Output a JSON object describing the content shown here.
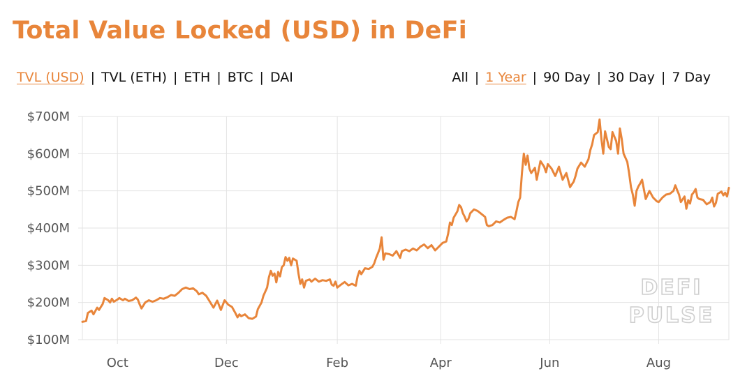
{
  "header": {
    "title": "Total Value Locked (USD) in DeFi"
  },
  "metric_tabs": [
    {
      "label": "TVL (USD)",
      "active": true
    },
    {
      "label": "TVL (ETH)",
      "active": false
    },
    {
      "label": "ETH",
      "active": false
    },
    {
      "label": "BTC",
      "active": false
    },
    {
      "label": "DAI",
      "active": false
    }
  ],
  "range_tabs": [
    {
      "label": "All",
      "active": false
    },
    {
      "label": "1 Year",
      "active": true
    },
    {
      "label": "90 Day",
      "active": false
    },
    {
      "label": "30 Day",
      "active": false
    },
    {
      "label": "7 Day",
      "active": false
    }
  ],
  "separator": "|",
  "watermark": {
    "line1": "DEFI",
    "line2": "PULSE"
  },
  "colors": {
    "accent": "#e8853a",
    "grid": "#e3e3e3",
    "tick": "#555555"
  },
  "chart_data": {
    "type": "line",
    "title": "Total Value Locked (USD) in DeFi",
    "xlabel": "",
    "ylabel": "",
    "ylim": [
      100,
      700
    ],
    "xlim": [
      0,
      350
    ],
    "yticks": [
      100,
      200,
      300,
      400,
      500,
      600,
      700
    ],
    "ytick_labels": [
      "$100M",
      "$200M",
      "$300M",
      "$400M",
      "$500M",
      "$600M",
      "$700M"
    ],
    "xticks": [
      {
        "label": "Oct",
        "x": 19
      },
      {
        "label": "Dec",
        "x": 78
      },
      {
        "label": "Feb",
        "x": 138
      },
      {
        "label": "Apr",
        "x": 194
      },
      {
        "label": "Jun",
        "x": 253
      },
      {
        "label": "Aug",
        "x": 312
      }
    ],
    "x_unit": "days since start of displayed range",
    "grid": true,
    "legend": "none",
    "series": [
      {
        "name": "TVL (USD)",
        "color": "#e8853a",
        "points": [
          [
            0,
            148
          ],
          [
            2,
            150
          ],
          [
            3,
            172
          ],
          [
            5,
            178
          ],
          [
            6,
            168
          ],
          [
            8,
            186
          ],
          [
            9,
            180
          ],
          [
            11,
            196
          ],
          [
            12,
            212
          ],
          [
            14,
            206
          ],
          [
            15,
            200
          ],
          [
            16,
            210
          ],
          [
            17,
            202
          ],
          [
            19,
            208
          ],
          [
            20,
            212
          ],
          [
            22,
            206
          ],
          [
            23,
            210
          ],
          [
            25,
            204
          ],
          [
            27,
            206
          ],
          [
            29,
            213
          ],
          [
            30,
            208
          ],
          [
            31,
            195
          ],
          [
            32,
            184
          ],
          [
            34,
            200
          ],
          [
            36,
            206
          ],
          [
            38,
            202
          ],
          [
            40,
            206
          ],
          [
            42,
            212
          ],
          [
            44,
            210
          ],
          [
            46,
            214
          ],
          [
            48,
            220
          ],
          [
            50,
            218
          ],
          [
            52,
            226
          ],
          [
            54,
            236
          ],
          [
            56,
            240
          ],
          [
            58,
            236
          ],
          [
            60,
            238
          ],
          [
            62,
            230
          ],
          [
            63,
            222
          ],
          [
            65,
            226
          ],
          [
            67,
            218
          ],
          [
            69,
            202
          ],
          [
            71,
            186
          ],
          [
            73,
            205
          ],
          [
            75,
            180
          ],
          [
            77,
            206
          ],
          [
            79,
            194
          ],
          [
            81,
            188
          ],
          [
            83,
            170
          ],
          [
            84,
            160
          ],
          [
            85,
            168
          ],
          [
            86,
            163
          ],
          [
            88,
            168
          ],
          [
            90,
            158
          ],
          [
            92,
            156
          ],
          [
            94,
            162
          ],
          [
            95,
            182
          ],
          [
            97,
            200
          ],
          [
            98,
            218
          ],
          [
            100,
            240
          ],
          [
            101,
            268
          ],
          [
            102,
            285
          ],
          [
            103,
            272
          ],
          [
            104,
            278
          ],
          [
            105,
            254
          ],
          [
            106,
            282
          ],
          [
            107,
            270
          ],
          [
            108,
            295
          ],
          [
            109,
            300
          ],
          [
            110,
            322
          ],
          [
            111,
            312
          ],
          [
            112,
            320
          ],
          [
            113,
            300
          ],
          [
            114,
            318
          ],
          [
            116,
            312
          ],
          [
            117,
            278
          ],
          [
            118,
            250
          ],
          [
            119,
            262
          ],
          [
            120,
            240
          ],
          [
            121,
            258
          ],
          [
            123,
            262
          ],
          [
            124,
            256
          ],
          [
            126,
            264
          ],
          [
            128,
            256
          ],
          [
            130,
            260
          ],
          [
            132,
            258
          ],
          [
            134,
            262
          ],
          [
            135,
            248
          ],
          [
            136,
            245
          ],
          [
            137,
            256
          ],
          [
            138,
            240
          ],
          [
            140,
            248
          ],
          [
            142,
            255
          ],
          [
            144,
            246
          ],
          [
            146,
            250
          ],
          [
            148,
            245
          ],
          [
            149,
            270
          ],
          [
            150,
            285
          ],
          [
            151,
            276
          ],
          [
            153,
            292
          ],
          [
            155,
            290
          ],
          [
            157,
            296
          ],
          [
            158,
            305
          ],
          [
            159,
            320
          ],
          [
            160,
            332
          ],
          [
            161,
            345
          ],
          [
            162,
            375
          ],
          [
            163,
            315
          ],
          [
            164,
            332
          ],
          [
            166,
            330
          ],
          [
            168,
            326
          ],
          [
            170,
            338
          ],
          [
            172,
            320
          ],
          [
            173,
            338
          ],
          [
            175,
            342
          ],
          [
            177,
            338
          ],
          [
            179,
            345
          ],
          [
            181,
            340
          ],
          [
            183,
            350
          ],
          [
            185,
            356
          ],
          [
            187,
            346
          ],
          [
            189,
            354
          ],
          [
            191,
            340
          ],
          [
            193,
            350
          ],
          [
            195,
            360
          ],
          [
            197,
            364
          ],
          [
            198,
            385
          ],
          [
            199,
            415
          ],
          [
            200,
            408
          ],
          [
            201,
            428
          ],
          [
            203,
            445
          ],
          [
            204,
            462
          ],
          [
            205,
            456
          ],
          [
            206,
            440
          ],
          [
            207,
            430
          ],
          [
            208,
            418
          ],
          [
            209,
            425
          ],
          [
            210,
            440
          ],
          [
            212,
            450
          ],
          [
            214,
            446
          ],
          [
            216,
            438
          ],
          [
            218,
            430
          ],
          [
            219,
            408
          ],
          [
            220,
            405
          ],
          [
            222,
            408
          ],
          [
            224,
            418
          ],
          [
            226,
            415
          ],
          [
            228,
            422
          ],
          [
            230,
            428
          ],
          [
            232,
            430
          ],
          [
            234,
            424
          ],
          [
            235,
            445
          ],
          [
            236,
            470
          ],
          [
            237,
            482
          ],
          [
            238,
            550
          ],
          [
            239,
            600
          ],
          [
            240,
            570
          ],
          [
            241,
            595
          ],
          [
            242,
            560
          ],
          [
            243,
            548
          ],
          [
            245,
            562
          ],
          [
            246,
            530
          ],
          [
            248,
            580
          ],
          [
            250,
            565
          ],
          [
            251,
            550
          ],
          [
            252,
            572
          ],
          [
            254,
            560
          ],
          [
            256,
            540
          ],
          [
            258,
            565
          ],
          [
            260,
            530
          ],
          [
            262,
            548
          ],
          [
            264,
            510
          ],
          [
            266,
            525
          ],
          [
            267,
            540
          ],
          [
            268,
            560
          ],
          [
            270,
            576
          ],
          [
            272,
            565
          ],
          [
            274,
            585
          ],
          [
            275,
            610
          ],
          [
            276,
            625
          ],
          [
            277,
            650
          ],
          [
            279,
            658
          ],
          [
            280,
            692
          ],
          [
            281,
            640
          ],
          [
            282,
            600
          ],
          [
            283,
            660
          ],
          [
            285,
            618
          ],
          [
            286,
            612
          ],
          [
            287,
            658
          ],
          [
            289,
            634
          ],
          [
            290,
            600
          ],
          [
            291,
            668
          ],
          [
            292,
            640
          ],
          [
            293,
            600
          ],
          [
            295,
            578
          ],
          [
            296,
            548
          ],
          [
            297,
            510
          ],
          [
            298,
            490
          ],
          [
            299,
            460
          ],
          [
            300,
            500
          ],
          [
            301,
            512
          ],
          [
            302,
            520
          ],
          [
            303,
            530
          ],
          [
            305,
            478
          ],
          [
            307,
            500
          ],
          [
            309,
            482
          ],
          [
            311,
            472
          ],
          [
            312,
            470
          ],
          [
            314,
            482
          ],
          [
            316,
            490
          ],
          [
            318,
            492
          ],
          [
            320,
            500
          ],
          [
            321,
            515
          ],
          [
            322,
            502
          ],
          [
            323,
            490
          ],
          [
            324,
            470
          ],
          [
            326,
            485
          ],
          [
            327,
            452
          ],
          [
            328,
            475
          ],
          [
            329,
            466
          ],
          [
            330,
            490
          ],
          [
            331,
            496
          ],
          [
            332,
            505
          ],
          [
            333,
            482
          ],
          [
            334,
            478
          ],
          [
            336,
            476
          ],
          [
            338,
            464
          ],
          [
            340,
            470
          ],
          [
            341,
            482
          ],
          [
            342,
            458
          ],
          [
            343,
            468
          ],
          [
            344,
            492
          ],
          [
            346,
            498
          ],
          [
            347,
            488
          ],
          [
            348,
            495
          ],
          [
            349,
            485
          ],
          [
            350,
            508
          ]
        ]
      }
    ]
  }
}
